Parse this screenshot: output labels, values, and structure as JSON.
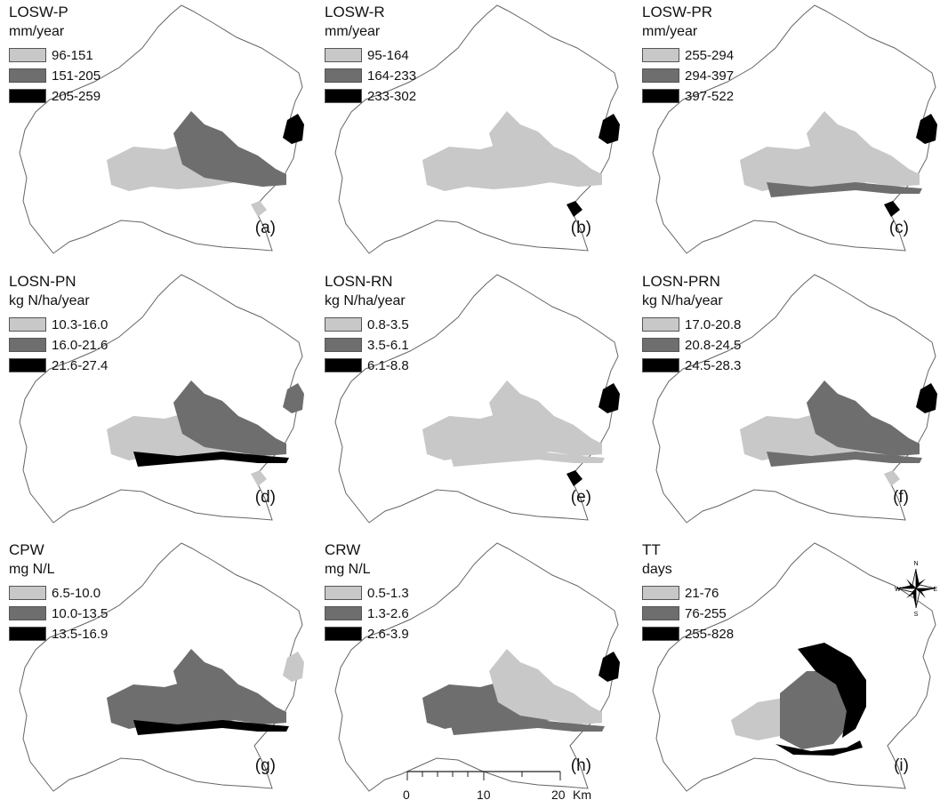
{
  "panels": [
    {
      "title": "LOSW-P",
      "unit": "mm/year",
      "label": "(a)",
      "legend": [
        {
          "range": "96-151",
          "color": "#c8c8c8"
        },
        {
          "range": "151-205",
          "color": "#6e6e6e"
        },
        {
          "range": "205-259",
          "color": "#000000"
        }
      ]
    },
    {
      "title": "LOSW-R",
      "unit": "mm/year",
      "label": "(b)",
      "legend": [
        {
          "range": "95-164",
          "color": "#c8c8c8"
        },
        {
          "range": "164-233",
          "color": "#6e6e6e"
        },
        {
          "range": "233-302",
          "color": "#000000"
        }
      ]
    },
    {
      "title": "LOSW-PR",
      "unit": "mm/year",
      "label": "(c)",
      "legend": [
        {
          "range": "255-294",
          "color": "#c8c8c8"
        },
        {
          "range": "294-397",
          "color": "#6e6e6e"
        },
        {
          "range": "397-522",
          "color": "#000000"
        }
      ]
    },
    {
      "title": "LOSN-PN",
      "unit": "kg N/ha/year",
      "label": "(d)",
      "legend": [
        {
          "range": "10.3-16.0",
          "color": "#c8c8c8"
        },
        {
          "range": "16.0-21.6",
          "color": "#6e6e6e"
        },
        {
          "range": "21.6-27.4",
          "color": "#000000"
        }
      ]
    },
    {
      "title": "LOSN-RN",
      "unit": "kg N/ha/year",
      "label": "(e)",
      "legend": [
        {
          "range": "0.8-3.5",
          "color": "#c8c8c8"
        },
        {
          "range": "3.5-6.1",
          "color": "#6e6e6e"
        },
        {
          "range": "6.1-8.8",
          "color": "#000000"
        }
      ]
    },
    {
      "title": "LOSN-PRN",
      "unit": "kg N/ha/year",
      "label": "(f)",
      "legend": [
        {
          "range": "17.0-20.8",
          "color": "#c8c8c8"
        },
        {
          "range": "20.8-24.5",
          "color": "#6e6e6e"
        },
        {
          "range": "24.5-28.3",
          "color": "#000000"
        }
      ]
    },
    {
      "title": "CPW",
      "unit": "mg N/L",
      "label": "(g)",
      "legend": [
        {
          "range": "6.5-10.0",
          "color": "#c8c8c8"
        },
        {
          "range": "10.0-13.5",
          "color": "#6e6e6e"
        },
        {
          "range": "13.5-16.9",
          "color": "#000000"
        }
      ]
    },
    {
      "title": "CRW",
      "unit": "mg N/L",
      "label": "(h)",
      "legend": [
        {
          "range": "0.5-1.3",
          "color": "#c8c8c8"
        },
        {
          "range": "1.3-2.6",
          "color": "#6e6e6e"
        },
        {
          "range": "2.6-3.9",
          "color": "#000000"
        }
      ]
    },
    {
      "title": "TT",
      "unit": "days",
      "label": "(i)",
      "legend": [
        {
          "range": "21-76",
          "color": "#c8c8c8"
        },
        {
          "range": "76-255",
          "color": "#6e6e6e"
        },
        {
          "range": "255-828",
          "color": "#000000"
        }
      ]
    }
  ],
  "scale_bar": {
    "ticks": [
      "0",
      "10",
      "20"
    ],
    "unit": "Km"
  },
  "north_arrow": {
    "labels": {
      "n": "N",
      "s": "S",
      "e": "E",
      "w": "W"
    },
    "icon": "compass-rose-icon"
  }
}
